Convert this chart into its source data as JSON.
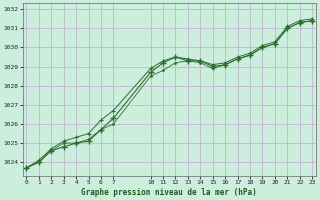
{
  "title": "Graphe pression niveau de la mer (hPa)",
  "bg_color": "#cceedd",
  "grid_color": "#bbaacc",
  "line_color": "#2d6e2d",
  "series1_x": [
    0,
    1,
    2,
    3,
    4,
    5,
    6,
    7,
    10,
    11,
    12,
    13,
    14,
    15,
    16,
    17,
    18,
    19,
    20,
    21,
    22,
    23
  ],
  "series1_y": [
    1023.7,
    1024.0,
    1024.6,
    1024.8,
    1025.0,
    1025.1,
    1025.7,
    1026.3,
    1028.7,
    1029.2,
    1029.5,
    1029.3,
    1029.3,
    1029.0,
    1029.1,
    1029.4,
    1029.6,
    1030.0,
    1030.2,
    1031.0,
    1031.3,
    1031.4
  ],
  "series2_x": [
    0,
    1,
    2,
    3,
    4,
    5,
    6,
    7,
    10,
    11,
    12,
    13,
    14,
    15,
    16,
    17,
    18,
    19,
    20,
    21,
    22,
    23
  ],
  "series2_y": [
    1023.7,
    1024.0,
    1024.6,
    1025.0,
    1025.0,
    1025.2,
    1025.7,
    1026.0,
    1028.5,
    1028.8,
    1029.2,
    1029.3,
    1029.2,
    1028.9,
    1029.1,
    1029.4,
    1029.6,
    1030.0,
    1030.2,
    1031.0,
    1031.3,
    1031.4
  ],
  "series3_x": [
    0,
    1,
    2,
    3,
    4,
    5,
    6,
    7,
    10,
    11,
    12,
    13,
    14,
    15,
    16,
    17,
    18,
    19,
    20,
    21,
    22,
    23
  ],
  "series3_y": [
    1023.7,
    1024.1,
    1024.7,
    1025.1,
    1025.3,
    1025.5,
    1026.2,
    1026.7,
    1028.9,
    1029.3,
    1029.5,
    1029.4,
    1029.3,
    1029.1,
    1029.2,
    1029.5,
    1029.7,
    1030.1,
    1030.3,
    1031.1,
    1031.4,
    1031.5
  ],
  "yticks": [
    1024,
    1025,
    1026,
    1027,
    1028,
    1029,
    1030,
    1031,
    1032
  ],
  "xtick_labels": [
    "0",
    "1",
    "2",
    "3",
    "4",
    "5",
    "6",
    "7",
    "10",
    "11",
    "12",
    "13",
    "14",
    "15",
    "16",
    "17",
    "18",
    "19",
    "20",
    "21",
    "22",
    "23"
  ],
  "xtick_positions": [
    0,
    1,
    2,
    3,
    4,
    5,
    6,
    7,
    10,
    11,
    12,
    13,
    14,
    15,
    16,
    17,
    18,
    19,
    20,
    21,
    22,
    23
  ],
  "ylim": [
    1023.3,
    1032.3
  ],
  "xlim": [
    -0.3,
    23.3
  ]
}
